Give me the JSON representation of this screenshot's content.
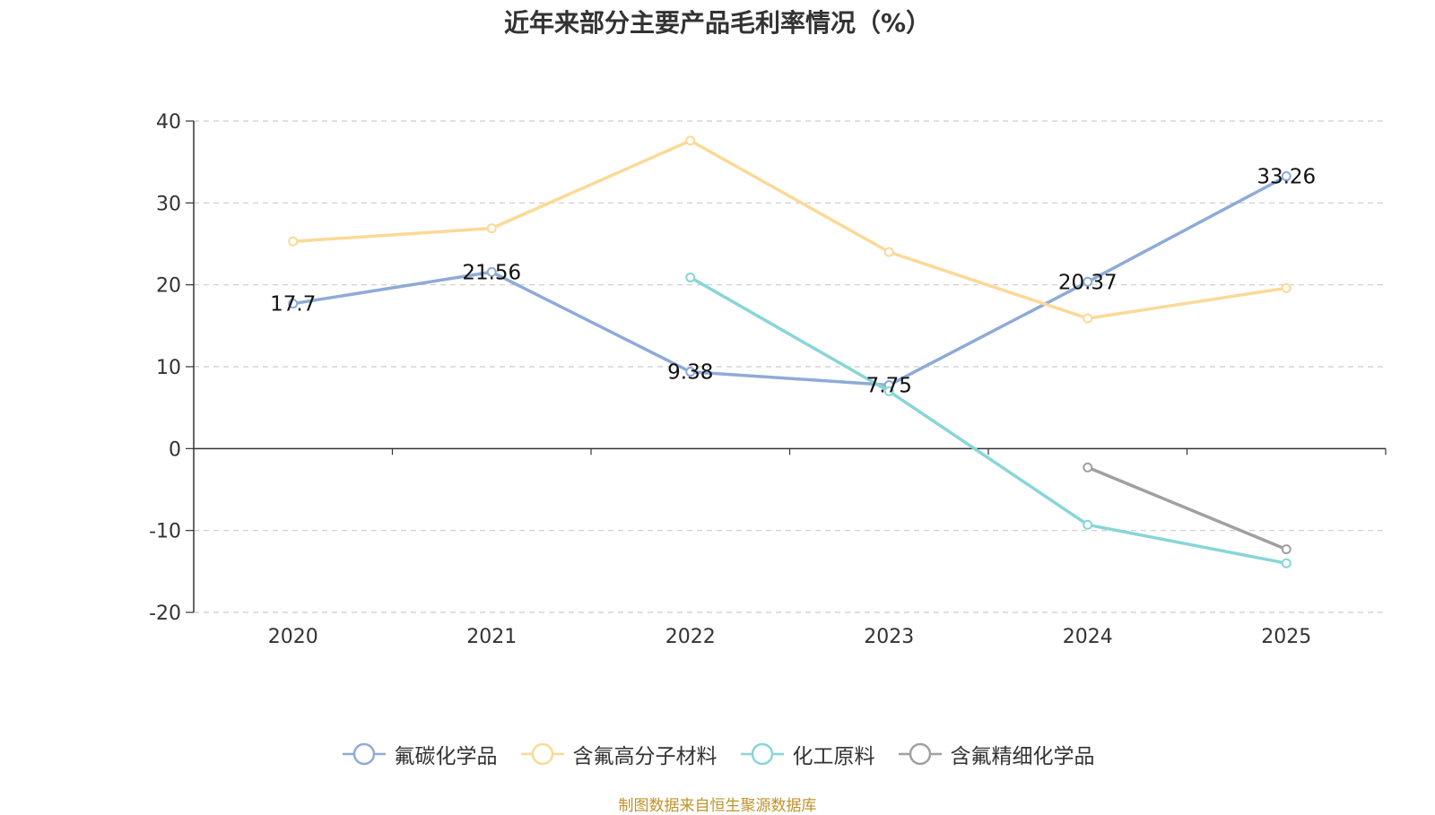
{
  "chart_data": {
    "type": "line",
    "title": "近年来部分主要产品毛利率情况（%）",
    "xlabel": "",
    "ylabel": "",
    "categories": [
      "2020",
      "2021",
      "2022",
      "2023",
      "2024",
      "2025"
    ],
    "ylim": [
      -20,
      40
    ],
    "yticks": [
      40,
      30,
      20,
      10,
      0,
      -10,
      -20
    ],
    "grid": true,
    "legend_position": "bottom-center",
    "series": [
      {
        "name": "氟碳化学品",
        "color": "#8eabd7",
        "values": [
          17.7,
          21.56,
          9.38,
          7.75,
          20.37,
          33.26
        ],
        "labels": [
          "17.7",
          "21.56",
          "9.38",
          "7.75",
          "20.37",
          "33.26"
        ]
      },
      {
        "name": "含氟高分子材料",
        "color": "#fbd996",
        "values": [
          25.3,
          26.9,
          37.6,
          24.0,
          15.9,
          19.6
        ],
        "labels": []
      },
      {
        "name": "化工原料",
        "color": "#88d5d7",
        "values": [
          null,
          null,
          20.9,
          7.0,
          -9.3,
          -14.0
        ],
        "labels": []
      },
      {
        "name": "含氟精细化学品",
        "color": "#a0a0a0",
        "values": [
          null,
          null,
          null,
          null,
          -2.3,
          -12.3
        ],
        "labels": []
      }
    ]
  },
  "source_note": "制图数据来自恒生聚源数据库"
}
